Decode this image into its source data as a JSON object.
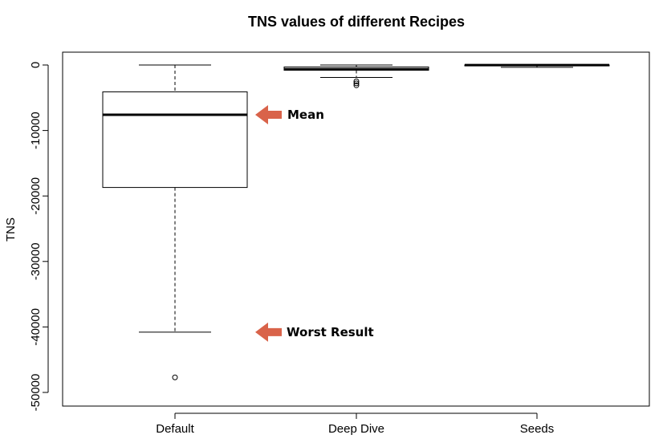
{
  "chart_data": {
    "type": "box",
    "title": "TNS values of different Recipes",
    "xlabel": "",
    "ylabel": "TNS",
    "ylim": [
      -51500,
      1500
    ],
    "yticks": [
      0,
      -10000,
      -20000,
      -30000,
      -40000,
      -50000
    ],
    "ytick_labels": [
      "0",
      "-10000",
      "-20000",
      "-30000",
      "-40000",
      "-50000"
    ],
    "categories": [
      "Default",
      "Deep Dive",
      "Seeds"
    ],
    "boxes": [
      {
        "name": "Default",
        "whisker_low": -40800,
        "q1": -18700,
        "median": -7600,
        "q3": -4100,
        "whisker_high": 0,
        "outliers": [
          -47700
        ]
      },
      {
        "name": "Deep Dive",
        "whisker_low": -1900,
        "q1": -800,
        "median": -650,
        "q3": -300,
        "whisker_high": 0,
        "outliers": [
          -2500,
          -2800,
          -3100
        ]
      },
      {
        "name": "Seeds",
        "whisker_low": -350,
        "q1": -80,
        "median": -20,
        "q3": 0,
        "whisker_high": 0,
        "outliers": []
      }
    ],
    "grid": false,
    "legend": "none",
    "annotations": [
      {
        "text": "Mean",
        "target_y": -7600,
        "arrow_color": "#d9634a"
      },
      {
        "text": "Worst Result",
        "target_y": -40800,
        "arrow_color": "#d9634a"
      }
    ]
  }
}
